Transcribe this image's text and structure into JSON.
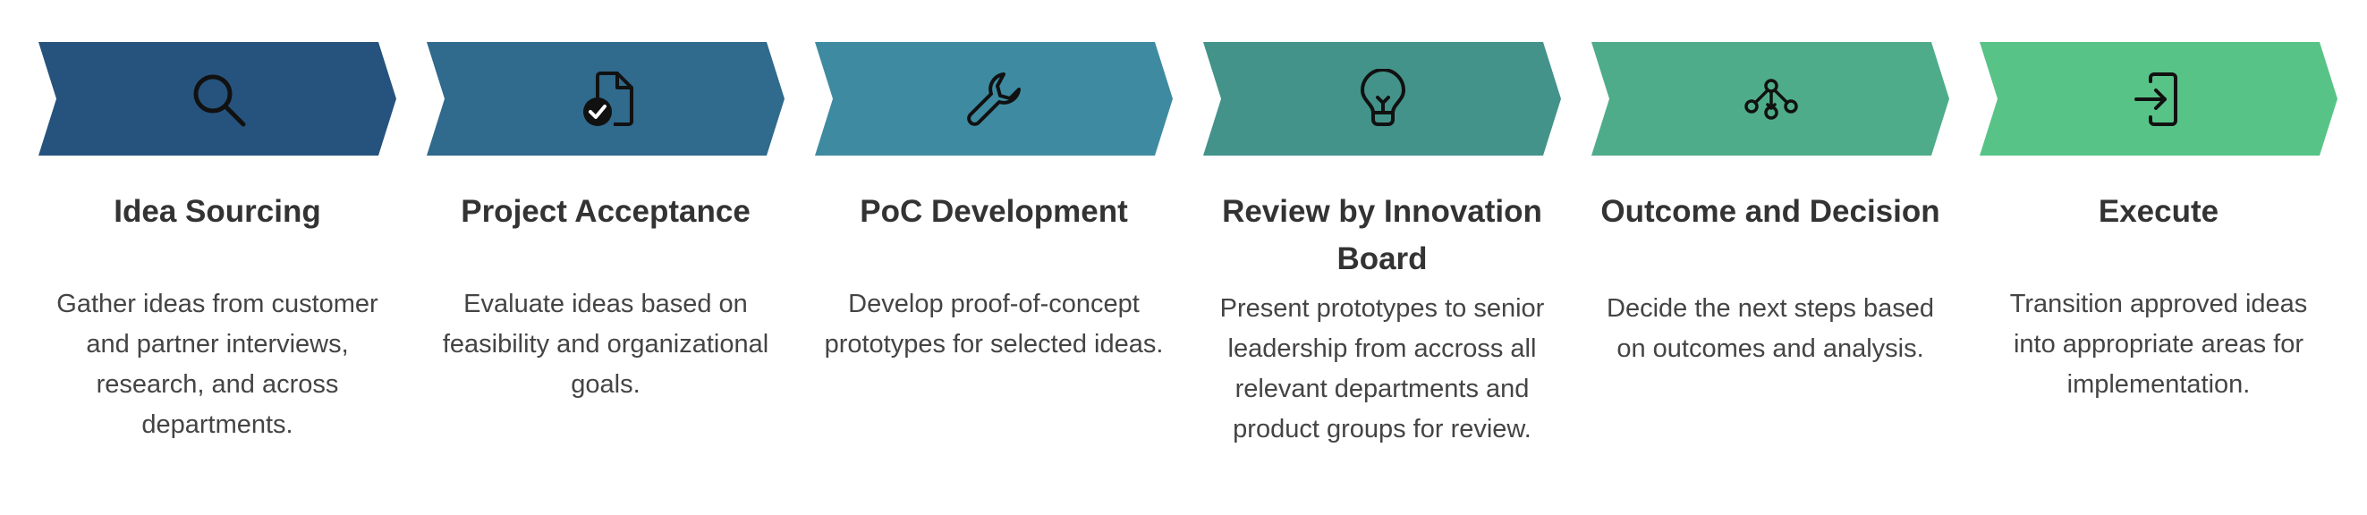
{
  "steps": [
    {
      "title": "Idea Sourcing",
      "description": "Gather ideas from customer and partner interviews, research, and across departments.",
      "icon": "magnifying-glass-icon",
      "color": "#26537d"
    },
    {
      "title": "Project Acceptance",
      "description": "Evaluate ideas based on feasibility and organizational goals.",
      "icon": "document-check-icon",
      "color": "#306a8d"
    },
    {
      "title": "PoC Development",
      "description": "Develop proof-of-concept prototypes for selected ideas.",
      "icon": "wrench-icon",
      "color": "#3e8ba1"
    },
    {
      "title": "Review by Innovation Board",
      "description": "Present prototypes to senior leadership from accross all relevant departments and product groups for review.",
      "icon": "lightbulb-icon",
      "color": "#43938a"
    },
    {
      "title": "Outcome and Decision",
      "description": "Decide the next steps based on outcomes and analysis.",
      "icon": "decision-tree-icon",
      "color": "#4fac8a"
    },
    {
      "title": "Execute",
      "description": "Transition approved ideas into appropriate areas for implementation.",
      "icon": "sign-in-icon",
      "color": "#58c387"
    }
  ]
}
